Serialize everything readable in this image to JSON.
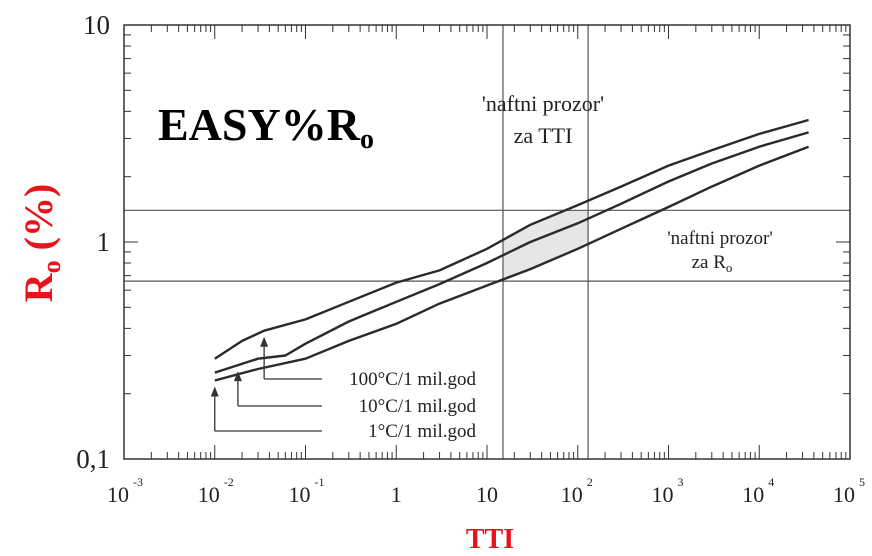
{
  "chart_data": {
    "type": "line",
    "title": "EASY%R",
    "title_sub": "o",
    "xlabel": "TTI",
    "ylabel": "R",
    "ylabel_sub": "o",
    "ylabel_tail": " (%)",
    "xscale": "log",
    "yscale": "log",
    "xlim": [
      0.001,
      100000
    ],
    "ylim": [
      0.1,
      10
    ],
    "x_ticks": [
      {
        "base": "10",
        "exp": "-3"
      },
      {
        "base": "10",
        "exp": "-2"
      },
      {
        "base": "10",
        "exp": "-1"
      },
      {
        "base": "1",
        "exp": ""
      },
      {
        "base": "10",
        "exp": ""
      },
      {
        "base": "10",
        "exp": "2"
      },
      {
        "base": "10",
        "exp": "3"
      },
      {
        "base": "10",
        "exp": "4"
      },
      {
        "base": "10",
        "exp": "5"
      }
    ],
    "y_ticks": [
      "0,1",
      "1",
      "10"
    ],
    "series": [
      {
        "name": "100°C/1 mil.god",
        "x": [
          0.01,
          0.02,
          0.035,
          0.1,
          0.3,
          1,
          3,
          10,
          30,
          100,
          300,
          1000,
          3000,
          10000,
          35000
        ],
        "y": [
          0.29,
          0.35,
          0.39,
          0.44,
          0.53,
          0.65,
          0.74,
          0.93,
          1.2,
          1.48,
          1.8,
          2.25,
          2.65,
          3.15,
          3.65
        ]
      },
      {
        "name": "10°C/1 mil.god",
        "x": [
          0.01,
          0.03,
          0.06,
          0.1,
          0.3,
          1,
          3,
          10,
          30,
          100,
          300,
          1000,
          3000,
          10000,
          35000
        ],
        "y": [
          0.25,
          0.29,
          0.3,
          0.34,
          0.43,
          0.53,
          0.64,
          0.8,
          1.0,
          1.22,
          1.5,
          1.9,
          2.3,
          2.75,
          3.2
        ]
      },
      {
        "name": "1°C/1 mil.god",
        "x": [
          0.01,
          0.03,
          0.1,
          0.3,
          1,
          3,
          10,
          30,
          100,
          300,
          1000,
          3000,
          10000,
          35000
        ],
        "y": [
          0.23,
          0.26,
          0.29,
          0.35,
          0.42,
          0.52,
          0.63,
          0.75,
          0.93,
          1.15,
          1.45,
          1.8,
          2.25,
          2.75
        ]
      }
    ],
    "oil_window_tti": [
      15,
      130
    ],
    "oil_window_ro": [
      0.66,
      1.4
    ],
    "annotations": {
      "tti_window_line1": "'naftni prozor'",
      "tti_window_line2": "za TTI",
      "ro_window_line1": "'naftni prozor'",
      "ro_window_line2": "za R",
      "ro_window_line2_sub": "o"
    },
    "legend_arrows": [
      {
        "series": 0,
        "x": 0.035
      },
      {
        "series": 1,
        "x": 0.018
      },
      {
        "series": 2,
        "x": 0.01
      }
    ],
    "grid": false
  },
  "colors": {
    "axis_label": "#e8141b",
    "line": "#2a2a2a",
    "window_fill": "#e6e6e6"
  }
}
